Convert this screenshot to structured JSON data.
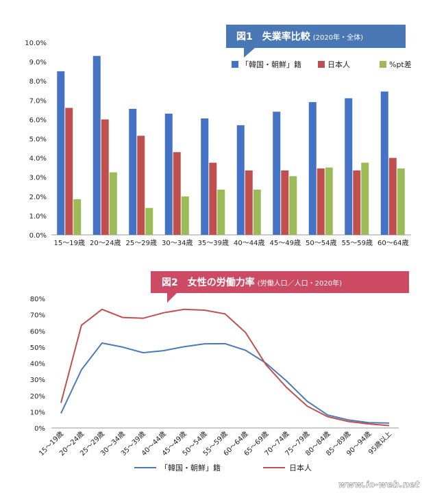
{
  "watermark": "www.io-web.net",
  "chart_data": [
    {
      "type": "bar",
      "title": "図1　失業率比較",
      "subtitle": "(2020年・全体)",
      "categories": [
        "15〜19歳",
        "20〜24歳",
        "25〜29歳",
        "30〜34歳",
        "35〜39歳",
        "40〜44歳",
        "45〜49歳",
        "50〜54歳",
        "55〜59歳",
        "60〜64歳"
      ],
      "series": [
        {
          "name": "「韓国・朝鮮」籍",
          "color": "#4472c4",
          "values": [
            8.5,
            9.3,
            6.55,
            6.3,
            6.05,
            5.7,
            6.4,
            6.9,
            7.1,
            7.45
          ]
        },
        {
          "name": "日本人",
          "color": "#c0504d",
          "values": [
            6.6,
            6.0,
            5.15,
            4.3,
            3.75,
            3.35,
            3.35,
            3.45,
            3.35,
            4.0
          ]
        },
        {
          "name": "%pt差",
          "color": "#9bbb59",
          "values": [
            1.85,
            3.25,
            1.4,
            2.0,
            2.35,
            2.35,
            3.05,
            3.5,
            3.75,
            3.45
          ]
        }
      ],
      "yticks": [
        "0.0%",
        "1.0%",
        "2.0%",
        "3.0%",
        "4.0%",
        "5.0%",
        "6.0%",
        "7.0%",
        "8.0%",
        "9.0%",
        "10.0%"
      ],
      "ylim": [
        0,
        10
      ],
      "legend": "top-right",
      "grid": false
    },
    {
      "type": "line",
      "title": "図2　女性の労働力率",
      "subtitle": "(労働人口／人口・2020年)",
      "categories": [
        "15〜19歳",
        "20〜24歳",
        "25〜29歳",
        "30〜34歳",
        "35〜39歳",
        "40〜44歳",
        "45〜49歳",
        "50〜54歳",
        "55〜59歳",
        "60〜64歳",
        "65〜69歳",
        "70〜74歳",
        "75〜79歳",
        "80〜84歳",
        "85〜89歳",
        "90〜94歳",
        "95歳以上"
      ],
      "series": [
        {
          "name": "「韓国・朝鮮」籍",
          "color": "#4a7bb7",
          "values": [
            9,
            36,
            52.5,
            50,
            46.5,
            47.8,
            50.2,
            52,
            52.1,
            48,
            40,
            29,
            16.5,
            8,
            5,
            3.3,
            3
          ]
        },
        {
          "name": "日本人",
          "color": "#c0504d",
          "values": [
            15.5,
            63.5,
            73.3,
            68.3,
            67.8,
            71.2,
            73.3,
            72.8,
            70.5,
            59,
            39,
            25,
            13.5,
            7,
            4,
            2.5,
            1.5
          ]
        }
      ],
      "yticks": [
        "0%",
        "10%",
        "20%",
        "30%",
        "40%",
        "50%",
        "60%",
        "70%",
        "80%"
      ],
      "ylim": [
        0,
        80
      ],
      "legend": "bottom",
      "grid": false
    }
  ]
}
